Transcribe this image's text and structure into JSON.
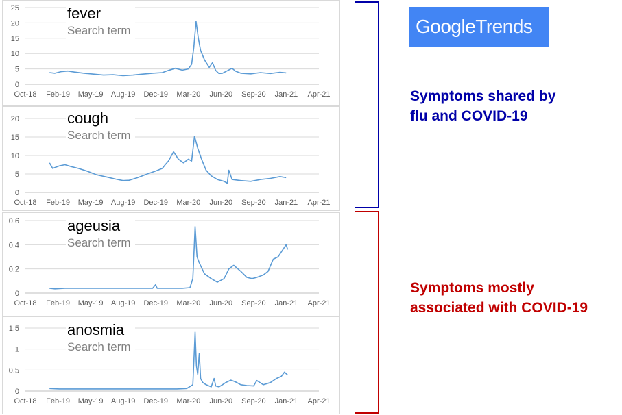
{
  "logo": {
    "part1": "Google",
    "part2": "Trends"
  },
  "annotations": {
    "shared": [
      "Symptoms shared by",
      "flu and COVID-19"
    ],
    "covid": [
      "Symptoms mostly",
      "associated with COVID-19"
    ]
  },
  "colors": {
    "line": "#5b9bd5",
    "brace_blue": "#0000a8",
    "brace_red": "#c00000",
    "logo_bg": "#4285f4"
  },
  "chart_data": [
    {
      "type": "line",
      "title": "fever",
      "subtitle": "Search term",
      "x_ticks": [
        "Oct-18",
        "Feb-19",
        "May-19",
        "Aug-19",
        "Dec-19",
        "Mar-20",
        "Jun-20",
        "Sep-20",
        "Jan-21",
        "Apr-21"
      ],
      "y_ticks": [
        "0",
        "5",
        "10",
        "15",
        "20",
        "25"
      ],
      "ylim": [
        0,
        25
      ],
      "grid": true,
      "series": [
        {
          "x": [
            "2018-12-15",
            "2019-01-01",
            "2019-01-20",
            "2019-02-10",
            "2019-03-01",
            "2019-04-01",
            "2019-05-01",
            "2019-06-01",
            "2019-07-01",
            "2019-08-01",
            "2019-09-01",
            "2019-10-01",
            "2019-11-01",
            "2019-12-01",
            "2019-12-20",
            "2020-01-10",
            "2020-02-01",
            "2020-02-20",
            "2020-03-01",
            "2020-03-08",
            "2020-03-15",
            "2020-03-22",
            "2020-03-29",
            "2020-04-10",
            "2020-04-25",
            "2020-05-05",
            "2020-05-15",
            "2020-05-25",
            "2020-06-05",
            "2020-06-20",
            "2020-07-05",
            "2020-07-15",
            "2020-08-01",
            "2020-09-01",
            "2020-10-01",
            "2020-11-01",
            "2020-12-01",
            "2020-12-20"
          ],
          "values": [
            3.8,
            3.6,
            4.1,
            4.3,
            4.0,
            3.6,
            3.3,
            3.0,
            3.1,
            2.8,
            3.0,
            3.3,
            3.6,
            3.8,
            4.5,
            5.2,
            4.6,
            5.0,
            6.5,
            12.0,
            20.5,
            15.0,
            11.0,
            8.0,
            5.5,
            7.0,
            4.5,
            3.5,
            3.6,
            4.4,
            5.2,
            4.3,
            3.6,
            3.4,
            3.8,
            3.5,
            3.9,
            3.7
          ]
        }
      ]
    },
    {
      "type": "line",
      "title": "cough",
      "subtitle": "Search term",
      "x_ticks": [
        "Oct-18",
        "Feb-19",
        "May-19",
        "Aug-19",
        "Dec-19",
        "Mar-20",
        "Jun-20",
        "Sep-20",
        "Jan-21",
        "Apr-21"
      ],
      "y_ticks": [
        "0",
        "5",
        "10",
        "15",
        "20"
      ],
      "ylim": [
        0,
        20
      ],
      "grid": true,
      "series": [
        {
          "x": [
            "2018-12-15",
            "2018-12-25",
            "2019-01-15",
            "2019-02-01",
            "2019-02-20",
            "2019-03-15",
            "2019-04-10",
            "2019-05-10",
            "2019-06-10",
            "2019-07-10",
            "2019-08-01",
            "2019-08-20",
            "2019-09-15",
            "2019-10-15",
            "2019-11-10",
            "2019-12-01",
            "2019-12-10",
            "2019-12-20",
            "2020-01-05",
            "2020-01-20",
            "2020-02-05",
            "2020-02-20",
            "2020-03-01",
            "2020-03-10",
            "2020-03-20",
            "2020-04-01",
            "2020-04-15",
            "2020-05-01",
            "2020-05-20",
            "2020-06-10",
            "2020-06-20",
            "2020-06-25",
            "2020-07-05",
            "2020-08-01",
            "2020-09-01",
            "2020-10-01",
            "2020-11-01",
            "2020-12-01",
            "2020-12-20"
          ],
          "values": [
            8.0,
            6.5,
            7.2,
            7.5,
            7.0,
            6.5,
            5.8,
            4.8,
            4.2,
            3.6,
            3.2,
            3.3,
            4.0,
            5.0,
            5.8,
            6.5,
            7.5,
            8.5,
            11.0,
            9.0,
            8.0,
            9.0,
            8.5,
            15.2,
            12.0,
            9.0,
            6.0,
            4.5,
            3.5,
            3.0,
            2.5,
            6.0,
            3.5,
            3.2,
            3.0,
            3.5,
            3.8,
            4.3,
            4.0
          ]
        }
      ]
    },
    {
      "type": "line",
      "title": "ageusia",
      "subtitle": "Search term",
      "x_ticks": [
        "Oct-18",
        "Feb-19",
        "May-19",
        "Aug-19",
        "Dec-19",
        "Mar-20",
        "Jun-20",
        "Sep-20",
        "Jan-21",
        "Apr-21"
      ],
      "y_ticks": [
        "0",
        "0.2",
        "0.4",
        "0.6"
      ],
      "ylim": [
        0,
        0.6
      ],
      "grid": true,
      "series": [
        {
          "x": [
            "2018-12-15",
            "2019-01-01",
            "2019-02-01",
            "2019-03-01",
            "2019-04-01",
            "2019-05-01",
            "2019-06-01",
            "2019-07-01",
            "2019-08-01",
            "2019-09-01",
            "2019-10-01",
            "2019-11-01",
            "2019-11-10",
            "2019-11-15",
            "2019-11-20",
            "2019-12-01",
            "2020-01-01",
            "2020-02-01",
            "2020-02-25",
            "2020-03-05",
            "2020-03-12",
            "2020-03-18",
            "2020-03-25",
            "2020-04-10",
            "2020-05-01",
            "2020-05-20",
            "2020-06-10",
            "2020-06-25",
            "2020-07-10",
            "2020-08-01",
            "2020-08-20",
            "2020-09-05",
            "2020-09-20",
            "2020-10-10",
            "2020-10-25",
            "2020-11-10",
            "2020-11-25",
            "2020-12-05",
            "2020-12-15",
            "2020-12-20",
            "2020-12-25"
          ],
          "values": [
            0.04,
            0.035,
            0.04,
            0.04,
            0.04,
            0.04,
            0.04,
            0.04,
            0.04,
            0.04,
            0.04,
            0.04,
            0.07,
            0.04,
            0.04,
            0.04,
            0.04,
            0.04,
            0.045,
            0.12,
            0.55,
            0.3,
            0.25,
            0.16,
            0.12,
            0.09,
            0.12,
            0.2,
            0.23,
            0.18,
            0.13,
            0.12,
            0.13,
            0.15,
            0.18,
            0.28,
            0.3,
            0.34,
            0.38,
            0.4,
            0.36
          ]
        }
      ]
    },
    {
      "type": "line",
      "title": "anosmia",
      "subtitle": "Search term",
      "x_ticks": [
        "Oct-18",
        "Feb-19",
        "May-19",
        "Aug-19",
        "Dec-19",
        "Mar-20",
        "Jun-20",
        "Sep-20",
        "Jan-21",
        "Apr-21"
      ],
      "y_ticks": [
        "0",
        "0.5",
        "1",
        "1.5"
      ],
      "ylim": [
        0,
        1.5
      ],
      "grid": true,
      "series": [
        {
          "x": [
            "2018-12-15",
            "2019-01-15",
            "2019-02-15",
            "2019-03-15",
            "2019-04-15",
            "2019-05-15",
            "2019-06-15",
            "2019-07-15",
            "2019-08-15",
            "2019-09-15",
            "2019-10-15",
            "2019-11-15",
            "2019-12-15",
            "2020-01-15",
            "2020-02-15",
            "2020-03-05",
            "2020-03-12",
            "2020-03-16",
            "2020-03-20",
            "2020-03-25",
            "2020-03-29",
            "2020-04-05",
            "2020-04-15",
            "2020-05-01",
            "2020-05-10",
            "2020-05-15",
            "2020-05-25",
            "2020-06-05",
            "2020-06-15",
            "2020-07-01",
            "2020-07-15",
            "2020-08-01",
            "2020-08-20",
            "2020-09-10",
            "2020-09-20",
            "2020-10-10",
            "2020-11-01",
            "2020-11-20",
            "2020-12-05",
            "2020-12-15",
            "2020-12-25"
          ],
          "values": [
            0.06,
            0.05,
            0.05,
            0.05,
            0.05,
            0.05,
            0.05,
            0.05,
            0.05,
            0.05,
            0.05,
            0.05,
            0.05,
            0.05,
            0.06,
            0.15,
            1.4,
            0.6,
            0.4,
            0.9,
            0.3,
            0.2,
            0.15,
            0.1,
            0.3,
            0.12,
            0.1,
            0.15,
            0.2,
            0.26,
            0.22,
            0.15,
            0.13,
            0.12,
            0.25,
            0.15,
            0.2,
            0.3,
            0.35,
            0.45,
            0.38
          ]
        }
      ]
    }
  ]
}
